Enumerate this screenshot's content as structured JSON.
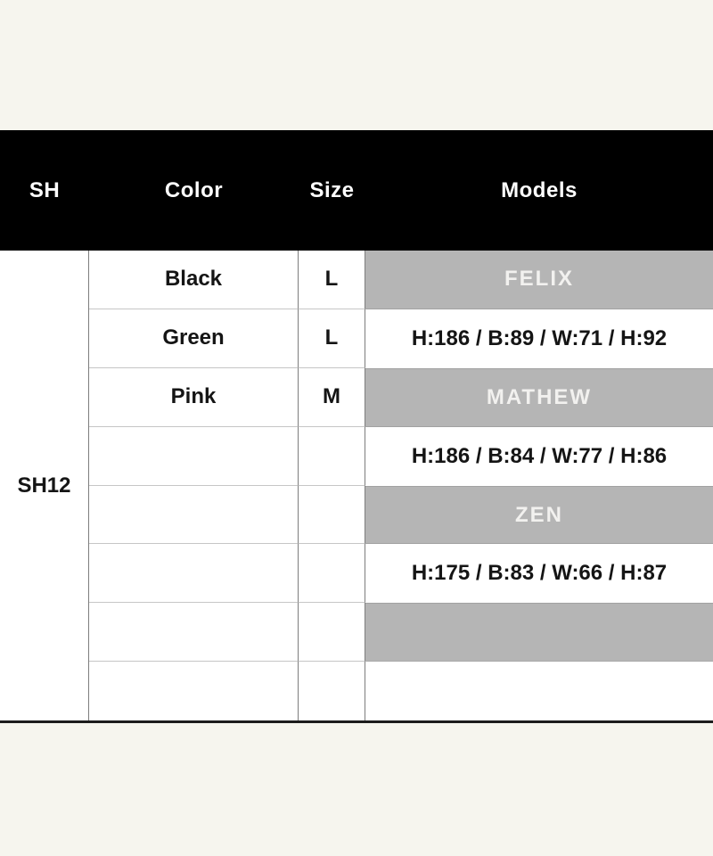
{
  "page": {
    "background_color": "#f6f5ee"
  },
  "table": {
    "columns": [
      "SH",
      "Color",
      "Size",
      "Models"
    ],
    "sh_code": "SH12",
    "rows": [
      {
        "color": "Black",
        "size": "L",
        "model": "FELIX",
        "model_style": "highlight"
      },
      {
        "color": "Green",
        "size": "L",
        "model": "H:186 / B:89 / W:71 / H:92",
        "model_style": "plain"
      },
      {
        "color": "Pink",
        "size": "M",
        "model": "MATHEW",
        "model_style": "highlight"
      },
      {
        "color": "",
        "size": "",
        "model": "H:186 / B:84 / W:77 / H:86",
        "model_style": "plain"
      },
      {
        "color": "",
        "size": "",
        "model": "ZEN",
        "model_style": "highlight"
      },
      {
        "color": "",
        "size": "",
        "model": "H:175 / B:83 / W:66 / H:87",
        "model_style": "plain"
      },
      {
        "color": "",
        "size": "",
        "model": "",
        "model_style": "highlight"
      },
      {
        "color": "",
        "size": "",
        "model": "",
        "model_style": "plain"
      }
    ],
    "colors": {
      "header_bg": "#000000",
      "header_text": "#ffffff",
      "highlight_bg": "#b5b5b5",
      "highlight_text": "#f2f1ef",
      "body_text": "#151515",
      "vertical_grid_line": "#7d7d7d",
      "horizontal_grid_line": "#c6c6c6",
      "table_bottom_border": "#1c1c1c"
    }
  }
}
